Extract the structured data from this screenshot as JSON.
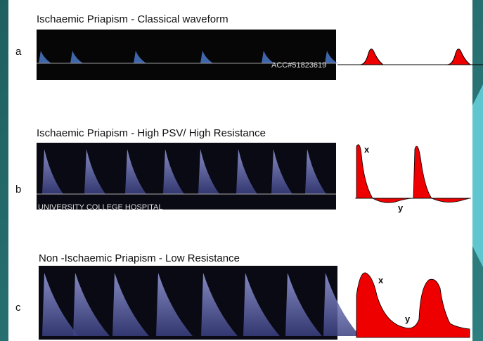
{
  "slide": {
    "panels": [
      {
        "letter": "a",
        "title": "Ischaemic Priapism - Classical waveform",
        "watermark": "ACC#51823619"
      },
      {
        "letter": "b",
        "title": "Ischaemic Priapism - High PSV/ High Resistance",
        "watermark": "UNIVERSITY COLLEGE HOSPITAL",
        "peak_label": "x",
        "trough_label": "y"
      },
      {
        "letter": "c",
        "title": "Non -Ischaemic Priapism - Low Resistance",
        "peak_label": "x",
        "trough_label": "y"
      }
    ]
  }
}
